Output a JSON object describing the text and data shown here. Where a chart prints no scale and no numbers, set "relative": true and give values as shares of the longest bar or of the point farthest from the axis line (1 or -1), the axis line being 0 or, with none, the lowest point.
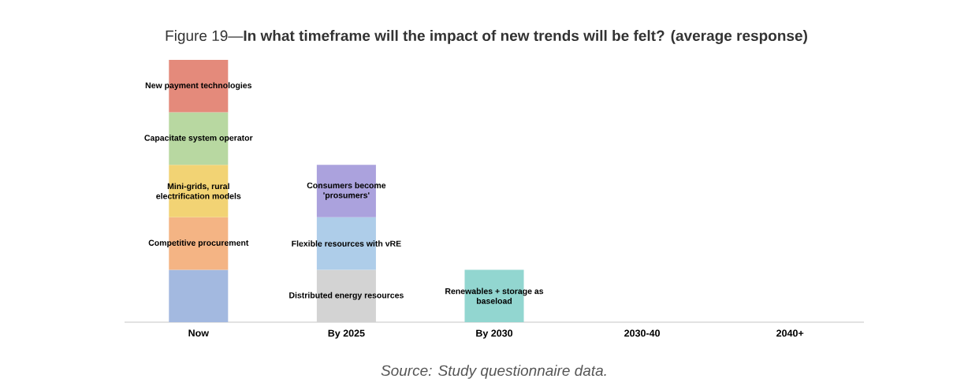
{
  "chart_data": {
    "type": "bar",
    "stacked": true,
    "relative": true,
    "title": "Figure 19—**In what timeframe will the impact of new trends will be felt? (average response)**",
    "categories": [
      "Now",
      "By 2025",
      "By 2030",
      "2030-40",
      "2040+"
    ],
    "series": [
      {
        "color": "#a3b9e0",
        "values": [
          0.2,
          null,
          null,
          null,
          null
        ]
      },
      {
        "name": "Competitive procurement",
        "color": "#f4b484",
        "values": [
          0.2,
          null,
          null,
          null,
          null
        ]
      },
      {
        "name": "Mini-grids, rural electrification models",
        "color": "#f2d374",
        "values": [
          0.2,
          null,
          null,
          null,
          null
        ]
      },
      {
        "name": "Capacitate system operator",
        "color": "#b8d8a1",
        "values": [
          0.2,
          null,
          null,
          null,
          null
        ]
      },
      {
        "name": "New payment technologies",
        "color": "#e48a7b",
        "values": [
          0.2,
          null,
          null,
          null,
          null
        ]
      },
      {
        "name": "Distributed energy resources",
        "color": "#d3d3d3",
        "values": [
          null,
          0.2,
          null,
          null,
          null
        ]
      },
      {
        "name": "Flexible resources with vRE",
        "color": "#aecde9",
        "values": [
          null,
          0.2,
          null,
          null,
          null
        ]
      },
      {
        "name": "Consumers become 'prosumers'",
        "color": "#aba2dd",
        "values": [
          null,
          0.2,
          null,
          null,
          null
        ]
      },
      {
        "name": "Renewables + storage as baseload",
        "color": "#92d6d0",
        "values": [
          null,
          null,
          0.2,
          null,
          null
        ]
      }
    ],
    "annotations": [
      "Source: Study questionnaire data."
    ]
  }
}
